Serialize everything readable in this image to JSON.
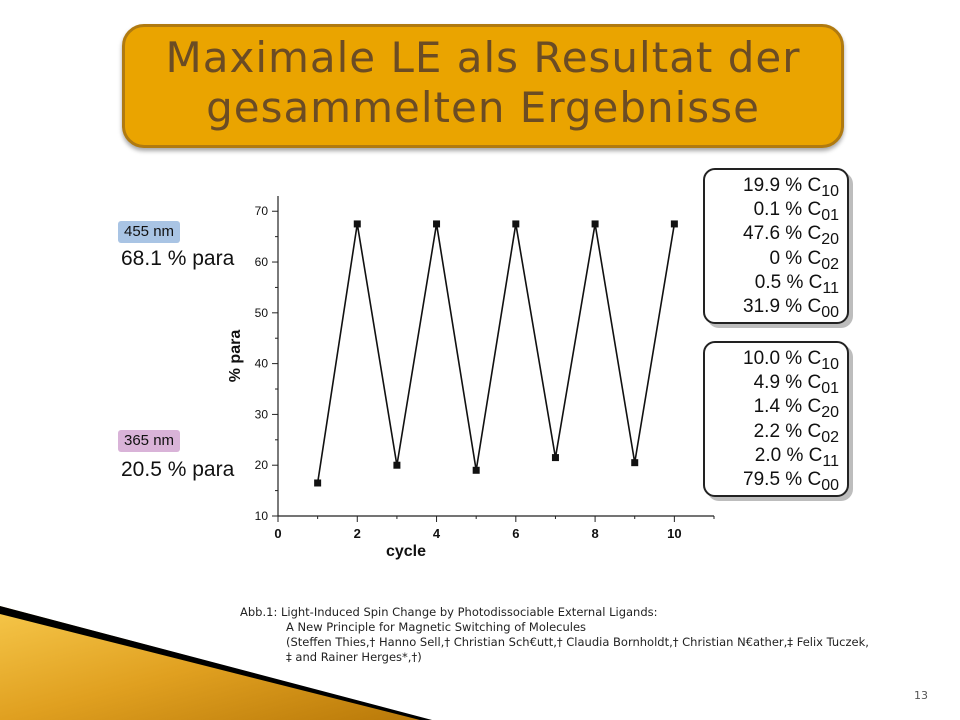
{
  "slide": {
    "title_line1": "Maximale LE als Resultat der",
    "title_line2": "gesammelten Ergebnisse",
    "page_number": "13",
    "colors": {
      "title_bg": "#eaa400",
      "title_text": "#6b4c24",
      "label_455_bg": "#a9c4e4",
      "label_365_bg": "#d9b3d8"
    }
  },
  "labels": {
    "top_wavelength": "455 nm",
    "top_para": "68.1 % para",
    "bottom_wavelength": "365 nm",
    "bottom_para": "20.5 % para"
  },
  "composition_boxes": {
    "top": [
      {
        "value": "19.9 % C",
        "sub": "10"
      },
      {
        "value": "0.1 % C",
        "sub": "01"
      },
      {
        "value": "47.6 % C",
        "sub": "20"
      },
      {
        "value": "0 % C",
        "sub": "02"
      },
      {
        "value": "0.5 % C",
        "sub": "11"
      },
      {
        "value": "31.9 % C",
        "sub": "00"
      }
    ],
    "bottom": [
      {
        "value": "10.0 % C",
        "sub": "10"
      },
      {
        "value": "4.9 % C",
        "sub": "01"
      },
      {
        "value": "1.4 % C",
        "sub": "20"
      },
      {
        "value": "2.2 % C",
        "sub": "02"
      },
      {
        "value": "2.0 % C",
        "sub": "11"
      },
      {
        "value": "79.5 % C",
        "sub": "00"
      }
    ]
  },
  "caption": {
    "line1": "Abb.1: Light-Induced Spin Change by Photodissociable External Ligands:",
    "line2": "A New Principle for Magnetic Switching of Molecules",
    "line3": "(Steffen Thies,† Hanno Sell,† Christian Sch€utt,† Claudia Bornholdt,† Christian N€ather,‡ Felix Tuczek,",
    "line4": "‡ and Rainer Herges*,†)"
  },
  "chart_data": {
    "type": "line",
    "title": "",
    "xlabel": "cycle",
    "ylabel": "% para",
    "x": [
      1,
      2,
      3,
      4,
      5,
      6,
      7,
      8,
      9,
      10
    ],
    "series": [
      {
        "values": [
          16.5,
          67.5,
          20.0,
          67.5,
          19.0,
          67.5,
          21.5,
          67.5,
          20.5,
          67.5
        ]
      }
    ],
    "xlim": [
      0,
      11
    ],
    "ylim": [
      10,
      73
    ],
    "xticks": [
      0,
      2,
      4,
      6,
      8,
      10
    ],
    "yticks": [
      10,
      20,
      30,
      40,
      50,
      60,
      70
    ],
    "grid": false,
    "marker": "square"
  }
}
